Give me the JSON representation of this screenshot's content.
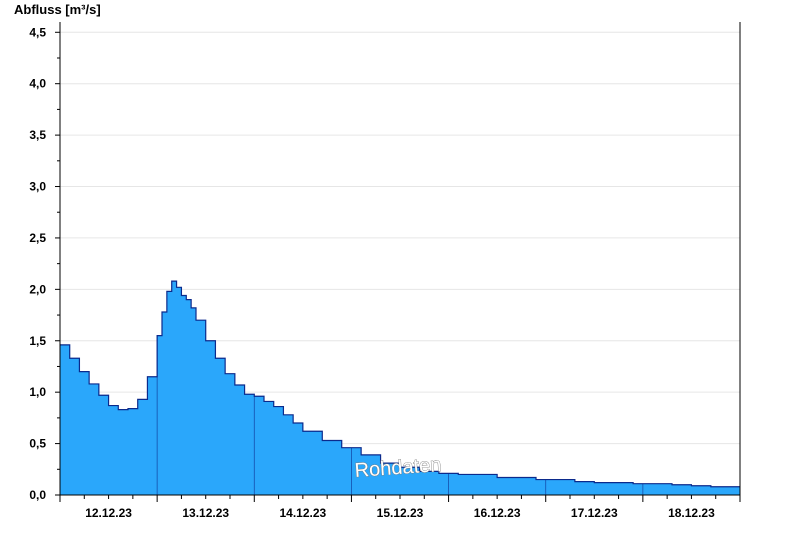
{
  "chart_data": {
    "type": "area",
    "ylabel": "Abfluss [m³/s]",
    "ylim": [
      0,
      4.6
    ],
    "yticks": [
      "0,0",
      "0,5",
      "1,0",
      "1,5",
      "2,0",
      "2,5",
      "3,0",
      "3,5",
      "4,0",
      "4,5"
    ],
    "ytick_values": [
      0,
      0.5,
      1.0,
      1.5,
      2.0,
      2.5,
      3.0,
      3.5,
      4.0,
      4.5
    ],
    "xlim_days": [
      11.5,
      18.5
    ],
    "xticks": [
      "12.12.23",
      "13.12.23",
      "14.12.23",
      "15.12.23",
      "16.12.23",
      "17.12.23",
      "18.12.23"
    ],
    "x": [
      11.5,
      11.6,
      11.7,
      11.8,
      11.9,
      12.0,
      12.1,
      12.15,
      12.2,
      12.3,
      12.4,
      12.5,
      12.55,
      12.6,
      12.65,
      12.7,
      12.75,
      12.8,
      12.85,
      12.9,
      13.0,
      13.1,
      13.2,
      13.3,
      13.4,
      13.5,
      13.6,
      13.7,
      13.8,
      13.9,
      14.0,
      14.2,
      14.4,
      14.6,
      14.8,
      15.0,
      15.2,
      15.4,
      15.6,
      16.0,
      16.4,
      16.8,
      17.0,
      17.4,
      17.8,
      18.0,
      18.2,
      18.5
    ],
    "values": [
      1.46,
      1.33,
      1.2,
      1.08,
      0.97,
      0.87,
      0.83,
      0.83,
      0.84,
      0.93,
      1.15,
      1.55,
      1.78,
      1.98,
      2.08,
      2.02,
      1.94,
      1.9,
      1.82,
      1.7,
      1.5,
      1.33,
      1.18,
      1.07,
      0.98,
      0.96,
      0.91,
      0.86,
      0.78,
      0.7,
      0.62,
      0.53,
      0.46,
      0.39,
      0.31,
      0.27,
      0.23,
      0.21,
      0.2,
      0.17,
      0.15,
      0.13,
      0.12,
      0.11,
      0.1,
      0.09,
      0.08,
      0.08
    ],
    "colors": {
      "fill": "#2aa7fb",
      "line": "#0b2a8c",
      "grid": "#e6e6e6"
    },
    "watermark": "Rohdaten"
  }
}
